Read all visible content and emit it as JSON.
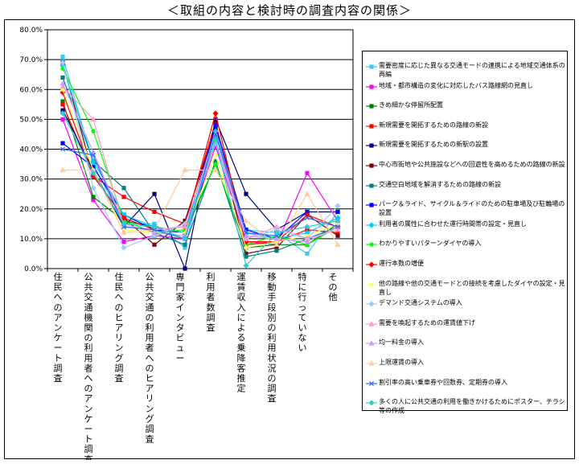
{
  "chart_data": {
    "type": "line",
    "title": "＜取組の内容と検討時の調査内容の関係＞",
    "xlabel": "",
    "ylabel": "",
    "ylim": [
      0,
      80
    ],
    "yticks": [
      "0.0%",
      "10.0%",
      "20.0%",
      "30.0%",
      "40.0%",
      "50.0%",
      "60.0%",
      "70.0%",
      "80.0%"
    ],
    "grid": true,
    "legend_position": "right",
    "categories": [
      "住民へのアンケート調査",
      "公共交通機関の利用者へのアンケート調査",
      "住民へのヒアリング調査",
      "公共交通の利用者へのヒアリング調査",
      "専門家インタビュー",
      "利用者数調査",
      "運賃収入による乗降客推定",
      "移動手段別の利用状況の調査",
      "特に行っていない",
      "その他"
    ],
    "series": [
      {
        "name": "需要密度に応じた異なる交通モードの連携による地域交通体系の再編",
        "color": "#33ccff",
        "marker": "square",
        "values": [
          71,
          35,
          15,
          15,
          7,
          47,
          13,
          12,
          5,
          19
        ]
      },
      {
        "name": "地域・都市構造の変化に対応したバス路線網の見直し",
        "color": "#ff00ff",
        "marker": "square",
        "values": [
          50,
          23,
          9,
          11,
          10,
          41,
          9,
          8,
          32,
          16
        ]
      },
      {
        "name": "きめ細かな停留所配置",
        "color": "#008000",
        "marker": "square",
        "values": [
          56,
          24,
          16,
          14,
          12,
          35,
          7,
          8,
          8,
          15
        ]
      },
      {
        "name": "新規需要を開拓するための路線の新設",
        "color": "#ff0000",
        "marker": "square",
        "values": [
          55,
          31,
          24,
          19,
          15,
          49,
          8,
          9,
          13,
          12
        ]
      },
      {
        "name": "新規需要を開拓するための新駅の設置",
        "color": "#000080",
        "marker": "square",
        "values": [
          53,
          33,
          14,
          25,
          0,
          50,
          25,
          13,
          19,
          19
        ]
      },
      {
        "name": "中心市街地や公共施設などへの回遊性を高めるための路線の新設",
        "color": "#800000",
        "marker": "square",
        "values": [
          69,
          31,
          17,
          8,
          16,
          47,
          5,
          7,
          18,
          11
        ]
      },
      {
        "name": "交通空白地域を解消するための路線の新設",
        "color": "#008080",
        "marker": "square",
        "values": [
          64,
          36,
          27,
          12,
          8,
          36,
          4,
          6,
          10,
          14
        ]
      },
      {
        "name": "パーク＆ライド、サイクル＆ライドのための駐車場及び駐輪場の設置",
        "color": "#0000ff",
        "marker": "square",
        "values": [
          42,
          34,
          18,
          13,
          12,
          48,
          13,
          10,
          19,
          19
        ]
      },
      {
        "name": "利用者の属性に合わせた運行時間帯の設定・見直し",
        "color": "#00ccff",
        "marker": "diamond",
        "values": [
          68,
          36,
          18,
          14,
          12,
          46,
          12,
          10,
          12,
          17
        ]
      },
      {
        "name": "わかりやすいパターンダイヤの導入",
        "color": "#00ff00",
        "marker": "circle",
        "values": [
          67,
          46,
          16,
          12,
          13,
          35,
          8,
          11,
          8,
          14
        ]
      },
      {
        "name": "運行本数の増便",
        "color": "#ff0000",
        "marker": "diamond",
        "values": [
          59,
          31,
          17,
          13,
          14,
          52,
          9,
          9,
          18,
          14
        ]
      },
      {
        "name": "他の路線や他の交通モードとの接続を考慮したダイヤの設定・見直し",
        "color": "#ffff66",
        "marker": "circle",
        "values": [
          60,
          33,
          13,
          12,
          12,
          38,
          7,
          9,
          11,
          15
        ]
      },
      {
        "name": "デマンド交通システムの導入",
        "color": "#99ccff",
        "marker": "diamond",
        "values": [
          69,
          27,
          7,
          11,
          15,
          42,
          10,
          13,
          10,
          21
        ]
      },
      {
        "name": "需要を喚起するための運賃値下げ",
        "color": "#ff99cc",
        "marker": "triangle",
        "values": [
          61,
          50,
          14,
          13,
          14,
          45,
          10,
          14,
          10,
          13
        ]
      },
      {
        "name": "均一料金の導入",
        "color": "#cc99ff",
        "marker": "triangle",
        "values": [
          62,
          39,
          15,
          12,
          11,
          43,
          11,
          10,
          9,
          14
        ]
      },
      {
        "name": "上限運賃の導入",
        "color": "#ffcc99",
        "marker": "triangle",
        "values": [
          33,
          33,
          12,
          13,
          33,
          33,
          16,
          8,
          25,
          8
        ]
      },
      {
        "name": "割引率の高い乗車券や回数券、定期券の導入",
        "color": "#3366ff",
        "marker": "cross",
        "values": [
          40,
          38,
          14,
          13,
          10,
          45,
          12,
          11,
          17,
          14
        ]
      },
      {
        "name": "多くの人に公共交通の利用を働きかけるためにポスター、チラシ等の作成",
        "color": "#33cccc",
        "marker": "diamond",
        "values": [
          52,
          32,
          15,
          14,
          10,
          43,
          1,
          12,
          14,
          16
        ]
      }
    ]
  }
}
